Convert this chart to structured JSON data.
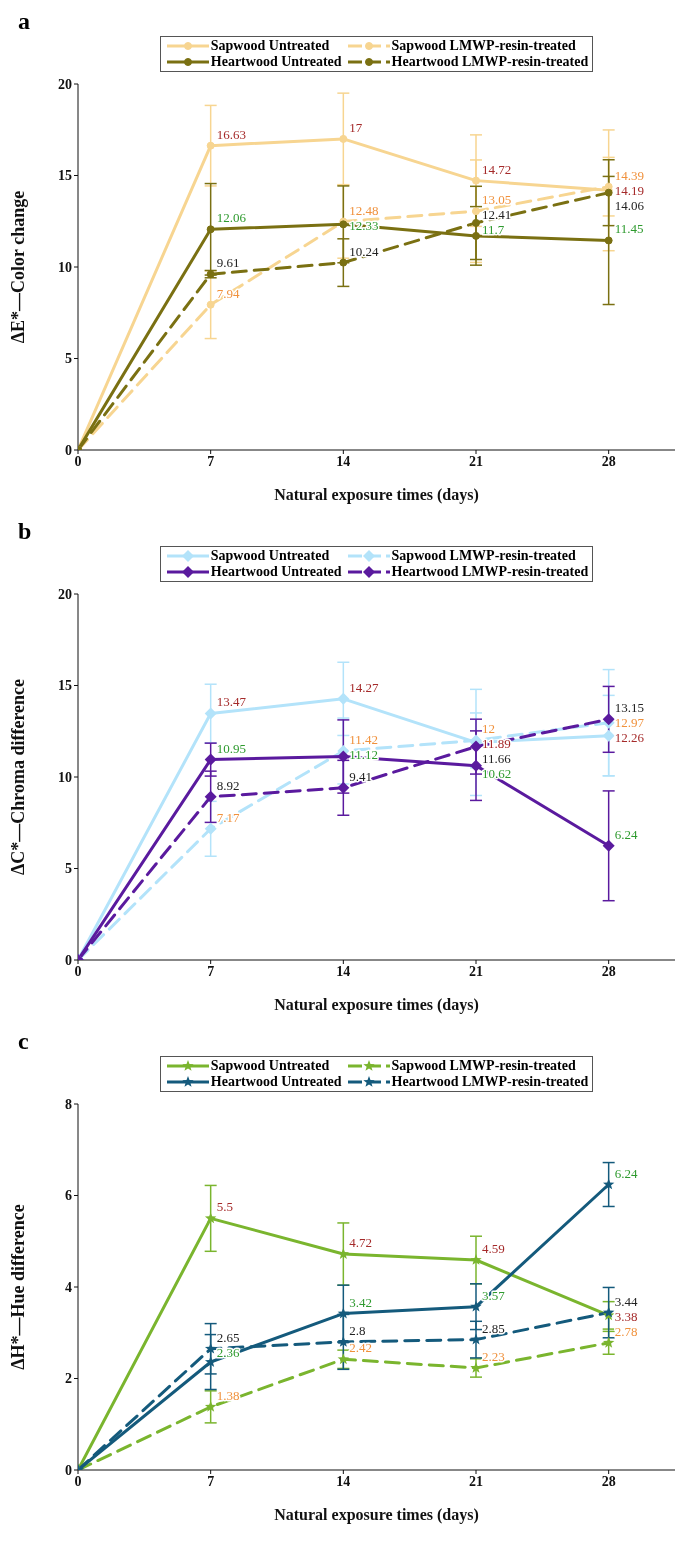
{
  "chart_data": [
    {
      "type": "line",
      "title": "a",
      "xlabel": "Natural exposure times (days)",
      "ylabel": "ΔE*—Color change",
      "x": [
        0,
        7,
        14,
        21,
        28
      ],
      "xlim": [
        0,
        31.5
      ],
      "xticks": [
        0,
        7,
        14,
        21,
        28
      ],
      "ylim": [
        0,
        20
      ],
      "yticks": [
        0,
        5,
        10,
        15,
        20
      ],
      "legend": "top",
      "marker": "circle",
      "series": [
        {
          "name": "Sapwood Untreated",
          "color": "#f7d591",
          "line_style": "solid",
          "values": [
            0,
            16.63,
            17,
            14.72,
            14.19
          ],
          "errors": [
            null,
            2.2,
            2.5,
            2.5,
            3.3
          ],
          "value_labels": [
            null,
            "16.63",
            "17",
            "14.72",
            "14.19"
          ]
        },
        {
          "name": "Sapwood LMWP-resin-treated",
          "color": "#f7d591",
          "line_style": "dashed",
          "values": [
            0,
            7.94,
            12.48,
            13.05,
            14.39
          ],
          "errors": [
            null,
            1.85,
            2,
            2.8,
            1.6
          ],
          "value_labels": [
            null,
            "7.94",
            "12.48",
            "13.05",
            "14.39"
          ]
        },
        {
          "name": "Heartwood Untreated",
          "color": "#7a7012",
          "line_style": "solid",
          "values": [
            0,
            12.06,
            12.33,
            11.7,
            11.45
          ],
          "errors": [
            null,
            2.5,
            2.1,
            1.6,
            3.5
          ],
          "value_labels": [
            null,
            "12.06",
            "12.33",
            "11.7",
            "11.45"
          ]
        },
        {
          "name": "Heartwood LMWP-resin-treated",
          "color": "#7a7012",
          "line_style": "dashed",
          "values": [
            0,
            9.61,
            10.24,
            12.41,
            14.06
          ],
          "errors": [
            null,
            0.2,
            1.3,
            2,
            1.8
          ],
          "value_labels": [
            null,
            "9.61",
            "10.24",
            "12.41",
            "14.06"
          ]
        }
      ]
    },
    {
      "type": "line",
      "title": "b",
      "xlabel": "Natural exposure times (days)",
      "ylabel": "ΔC*—Chroma difference",
      "x": [
        0,
        7,
        14,
        21,
        28
      ],
      "xlim": [
        0,
        31.5
      ],
      "xticks": [
        0,
        7,
        14,
        21,
        28
      ],
      "ylim": [
        0,
        20
      ],
      "yticks": [
        0,
        5,
        10,
        15,
        20
      ],
      "legend": "top",
      "marker": "diamond",
      "series": [
        {
          "name": "Sapwood Untreated",
          "color": "#b3e3fa",
          "line_style": "solid",
          "values": [
            0,
            13.47,
            14.27,
            11.89,
            12.26
          ],
          "errors": [
            null,
            1.6,
            2,
            2.9,
            2.2
          ],
          "value_labels": [
            null,
            "13.47",
            "14.27",
            "11.89",
            "12.26"
          ]
        },
        {
          "name": "Sapwood LMWP-resin-treated",
          "color": "#b3e3fa",
          "line_style": "dashed",
          "values": [
            0,
            7.17,
            11.42,
            12,
            12.97
          ],
          "errors": [
            null,
            1.5,
            1.8,
            1.5,
            2.9
          ],
          "value_labels": [
            null,
            "7.17",
            "11.42",
            "12",
            "12.97"
          ]
        },
        {
          "name": "Heartwood Untreated",
          "color": "#5a1a9e",
          "line_style": "solid",
          "values": [
            0,
            10.95,
            11.12,
            10.62,
            6.24
          ],
          "errors": [
            null,
            0.9,
            2,
            1.9,
            3
          ],
          "value_labels": [
            null,
            "10.95",
            "11.12",
            "10.62",
            "6.24"
          ]
        },
        {
          "name": "Heartwood LMWP-resin-treated",
          "color": "#5a1a9e",
          "line_style": "dashed",
          "values": [
            0,
            8.92,
            9.41,
            11.66,
            13.15
          ],
          "errors": [
            null,
            1.4,
            1.5,
            1.5,
            1.8
          ],
          "value_labels": [
            null,
            "8.92",
            "9.41",
            "11.66",
            "13.15"
          ]
        }
      ]
    },
    {
      "type": "line",
      "title": "c",
      "xlabel": "Natural exposure times (days)",
      "ylabel": "ΔH*—Hue difference",
      "x": [
        0,
        7,
        14,
        21,
        28
      ],
      "xlim": [
        0,
        31.5
      ],
      "xticks": [
        0,
        7,
        14,
        21,
        28
      ],
      "ylim": [
        0,
        8
      ],
      "yticks": [
        0,
        2,
        4,
        6,
        8
      ],
      "legend": "top",
      "marker": "star",
      "series": [
        {
          "name": "Sapwood Untreated",
          "color": "#7ab52e",
          "line_style": "solid",
          "values": [
            0,
            5.5,
            4.72,
            4.59,
            3.38
          ],
          "errors": [
            null,
            0.72,
            0.68,
            0.52,
            0.3
          ],
          "value_labels": [
            null,
            "5.5",
            "4.72",
            "4.59",
            "3.38"
          ]
        },
        {
          "name": "Sapwood LMWP-resin-treated",
          "color": "#7ab52e",
          "line_style": "dashed",
          "values": [
            0,
            1.38,
            2.42,
            2.23,
            2.78
          ],
          "errors": [
            null,
            0.35,
            0.2,
            0.2,
            0.25
          ],
          "value_labels": [
            null,
            "1.38",
            "2.42",
            "2.23",
            "2.78"
          ]
        },
        {
          "name": "Heartwood Untreated",
          "color": "#145a7c",
          "line_style": "solid",
          "values": [
            0,
            2.36,
            3.42,
            3.57,
            6.24
          ],
          "errors": [
            null,
            0.6,
            0.62,
            0.5,
            0.48
          ],
          "value_labels": [
            null,
            "2.36",
            "3.42",
            "3.57",
            "6.24"
          ]
        },
        {
          "name": "Heartwood LMWP-resin-treated",
          "color": "#145a7c",
          "line_style": "dashed",
          "values": [
            0,
            2.65,
            2.8,
            2.85,
            3.44
          ],
          "errors": [
            null,
            0.55,
            0.6,
            0.4,
            0.55
          ],
          "value_labels": [
            null,
            "2.65",
            "2.8",
            "2.85",
            "3.44"
          ]
        }
      ]
    }
  ]
}
